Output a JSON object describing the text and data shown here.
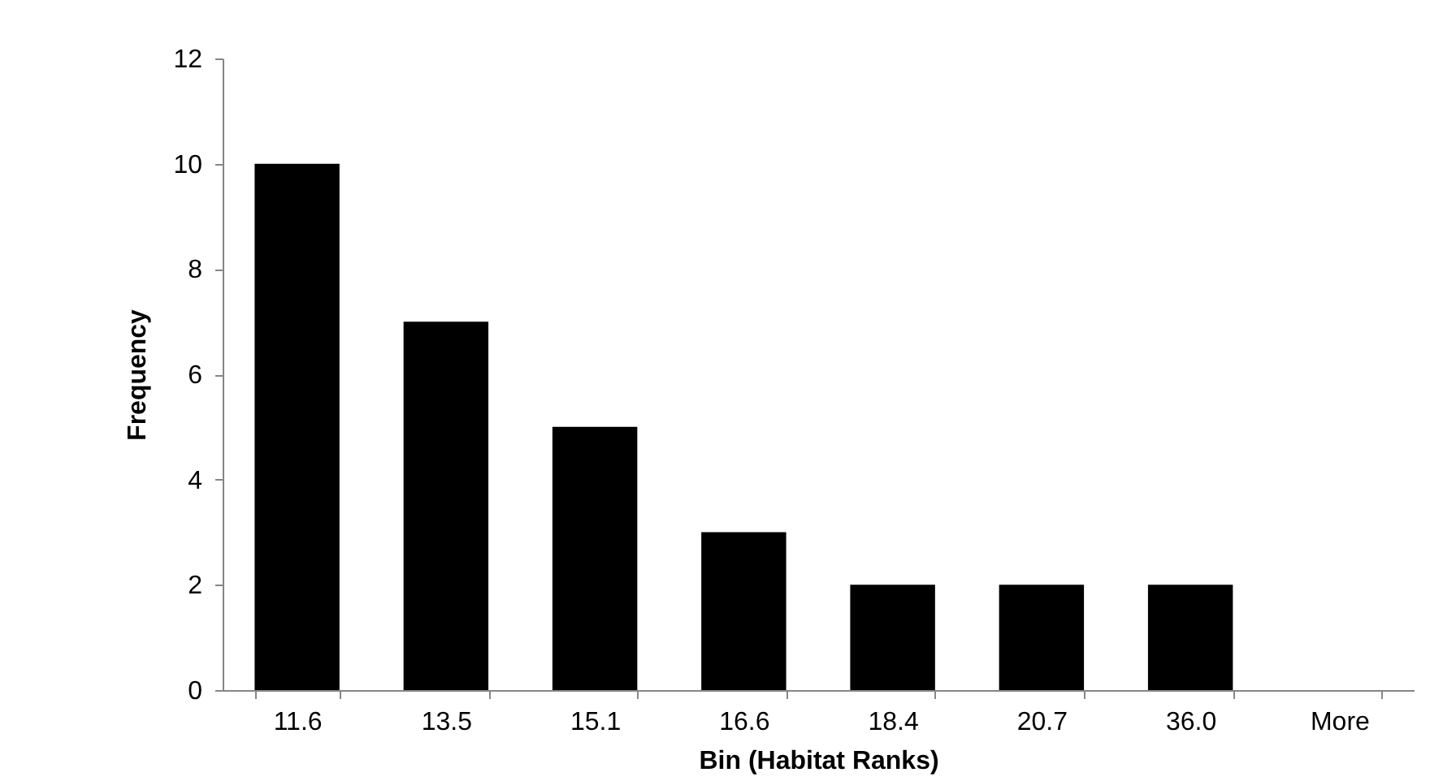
{
  "chart_data": {
    "type": "bar",
    "xlabel": "Bin (Habitat Ranks)",
    "ylabel": "Frequency",
    "categories": [
      "11.6",
      "13.5",
      "15.1",
      "16.6",
      "18.4",
      "20.7",
      "36.0",
      "More"
    ],
    "values": [
      10,
      7,
      5,
      3,
      2,
      2,
      2,
      0
    ],
    "color": "#000000",
    "ylim": [
      0,
      12
    ],
    "yticks": [
      0,
      2,
      4,
      6,
      8,
      10,
      12
    ]
  }
}
